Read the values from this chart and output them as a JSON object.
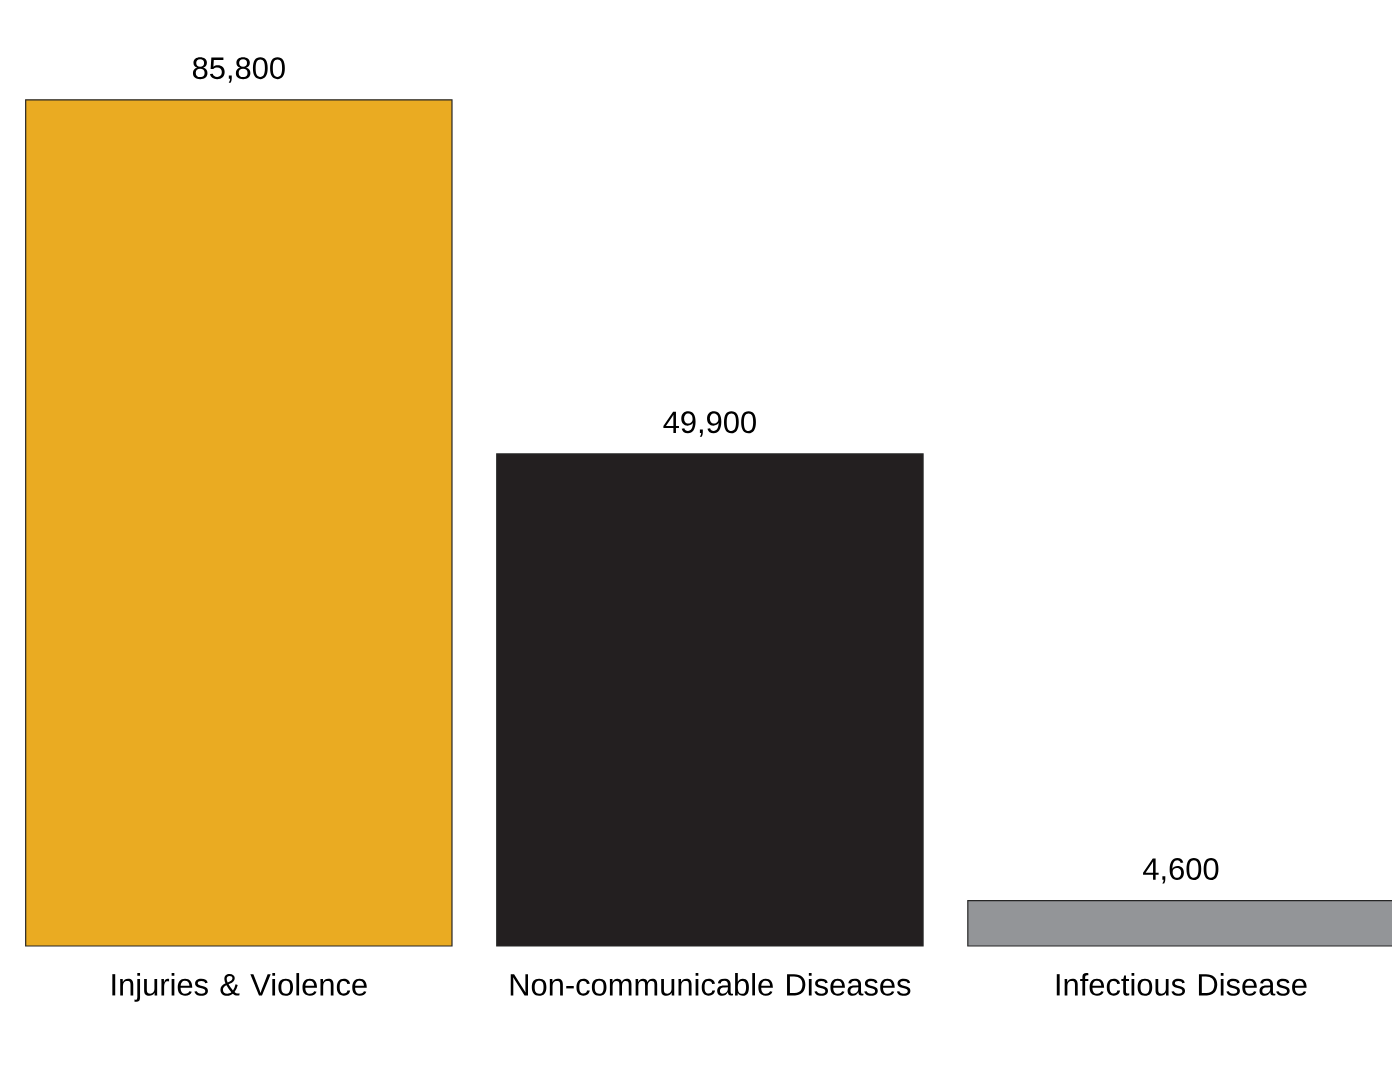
{
  "chart_data": {
    "type": "bar",
    "categories": [
      "Injuries & Violence",
      "Non-communicable Diseases",
      "Infectious Disease"
    ],
    "values": [
      85800,
      49900,
      4600
    ],
    "value_labels": [
      "85,800",
      "49,900",
      "4,600"
    ],
    "colors": [
      "#eaab22",
      "#231f20",
      "#939598"
    ]
  }
}
